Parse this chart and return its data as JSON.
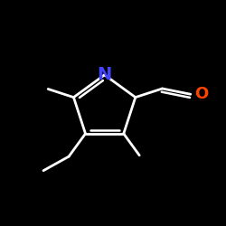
{
  "background_color": "#000000",
  "atom_N_color": "#4444ff",
  "atom_O_color": "#ff4400",
  "bond_color": "#ffffff",
  "bond_width": 2.0,
  "figsize": [
    2.5,
    2.5
  ],
  "dpi": 100,
  "font_size_atom": 14
}
